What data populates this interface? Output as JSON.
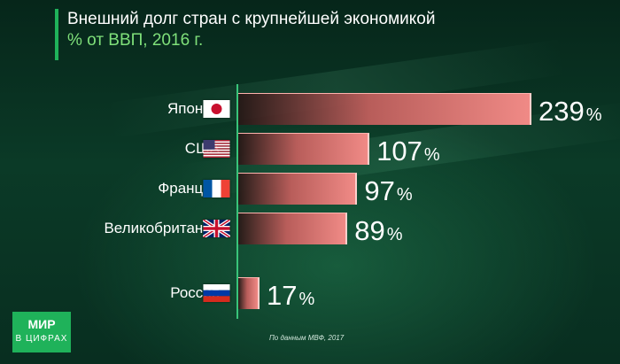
{
  "header": {
    "title": "Внешний долг стран с крупнейшей экономикой",
    "subtitle": "% от ВВП, 2016 г."
  },
  "chart_data": {
    "type": "bar",
    "orientation": "horizontal",
    "categories": [
      "Япония",
      "США",
      "Франция",
      "Великобритания",
      "Россия"
    ],
    "values": [
      239,
      107,
      97,
      89,
      17
    ],
    "value_labels": [
      "239",
      "107",
      "97",
      "89",
      "17"
    ],
    "unit_suffix": "%",
    "title": "Внешний долг стран с крупнейшей экономикой",
    "subtitle": "% от ВВП, 2016 г.",
    "xlim": [
      0,
      250
    ],
    "grid": false,
    "legend": "none",
    "colors": {
      "bar_end": "#f08a86",
      "bar_start": "#28141a",
      "axis": "#39c47a"
    }
  },
  "flags": [
    "japan-flag-icon",
    "usa-flag-icon",
    "france-flag-icon",
    "uk-flag-icon",
    "russia-flag-icon"
  ],
  "source": "По данным МВФ, 2017",
  "logo": {
    "line1": "МИР",
    "line2": "В ЦИФРАХ"
  },
  "colors": {
    "accent": "#1fb25a",
    "subtitle": "#7fe07a"
  }
}
